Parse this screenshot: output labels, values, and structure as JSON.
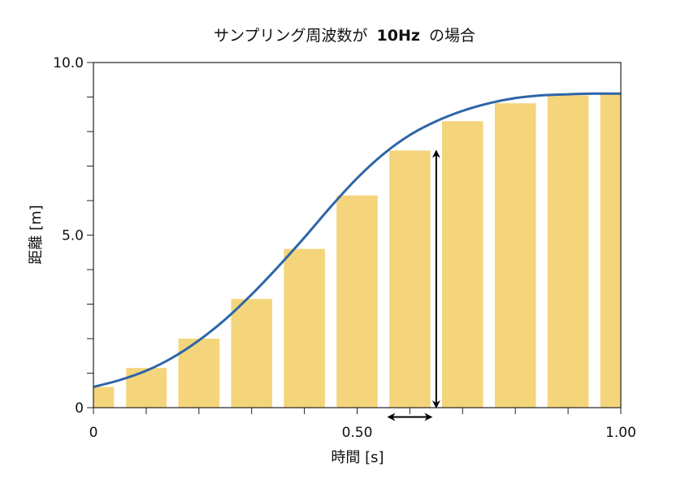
{
  "chart_data": {
    "type": "bar",
    "title_prefix": "サンプリング周波数が",
    "title_rate": "10Hz",
    "title_suffix": "の場合",
    "xlabel": "時間 [s]",
    "ylabel": "距離 [m]",
    "xlim": [
      0,
      1.0
    ],
    "ylim": [
      0,
      10.0
    ],
    "xticks": [
      {
        "value": 0,
        "label": "0"
      },
      {
        "value": 0.5,
        "label": "0.50"
      },
      {
        "value": 1.0,
        "label": "1.00"
      }
    ],
    "yticks": [
      {
        "value": 0,
        "label": "0"
      },
      {
        "value": 5.0,
        "label": "5.0"
      },
      {
        "value": 10.0,
        "label": "10.0"
      }
    ],
    "bars": [
      {
        "x0": 0.0,
        "x1": 0.039,
        "value": 0.6
      },
      {
        "x0": 0.062,
        "x1": 0.139,
        "value": 1.15
      },
      {
        "x0": 0.161,
        "x1": 0.239,
        "value": 2.0
      },
      {
        "x0": 0.261,
        "x1": 0.339,
        "value": 3.15
      },
      {
        "x0": 0.361,
        "x1": 0.439,
        "value": 4.6
      },
      {
        "x0": 0.461,
        "x1": 0.539,
        "value": 6.15
      },
      {
        "x0": 0.561,
        "x1": 0.639,
        "value": 7.45
      },
      {
        "x0": 0.661,
        "x1": 0.739,
        "value": 8.3
      },
      {
        "x0": 0.761,
        "x1": 0.839,
        "value": 8.82
      },
      {
        "x0": 0.861,
        "x1": 0.939,
        "value": 9.05
      },
      {
        "x0": 0.961,
        "x1": 1.0,
        "value": 9.1
      }
    ],
    "curve": {
      "x": [
        0.0,
        0.05,
        0.1,
        0.15,
        0.2,
        0.25,
        0.3,
        0.35,
        0.4,
        0.45,
        0.5,
        0.55,
        0.6,
        0.65,
        0.7,
        0.75,
        0.8,
        0.85,
        0.9,
        0.95,
        1.0
      ],
      "y": [
        0.6,
        0.8,
        1.07,
        1.45,
        1.95,
        2.56,
        3.28,
        4.08,
        4.93,
        5.82,
        6.65,
        7.35,
        7.9,
        8.3,
        8.6,
        8.82,
        8.97,
        9.05,
        9.08,
        9.1,
        9.1
      ]
    },
    "annotations": [
      {
        "type": "double-arrow",
        "orientation": "vertical",
        "x": 0.65,
        "y0": 0.0,
        "y1": 7.45
      },
      {
        "type": "double-arrow",
        "orientation": "horizontal",
        "y": -0.27,
        "x0": 0.56,
        "x1": 0.64
      }
    ],
    "colors": {
      "bar": "#F5D57C",
      "curve": "#2D65A8",
      "axis": "#222222",
      "annotation": "#000000"
    },
    "grid": false
  }
}
